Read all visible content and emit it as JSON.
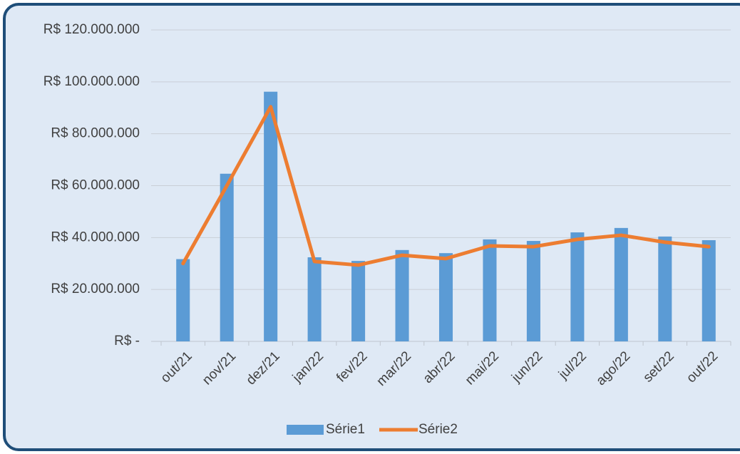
{
  "chart_data": {
    "type": "bar_line",
    "categories": [
      "out/21",
      "nov/21",
      "dez/21",
      "jan/22",
      "fev/22",
      "mar/22",
      "abr/22",
      "mai/22",
      "jun/22",
      "jul/22",
      "ago/22",
      "set/22",
      "out/22"
    ],
    "series": [
      {
        "name": "Série1",
        "type": "bar",
        "color": "#5b9bd5",
        "values": [
          31700000,
          64600000,
          96200000,
          32400000,
          31000000,
          35200000,
          34000000,
          39300000,
          38700000,
          42000000,
          43700000,
          40400000,
          39000000
        ]
      },
      {
        "name": "Série2",
        "type": "line",
        "color": "#ed7d31",
        "values": [
          30000000,
          60000000,
          90400000,
          30800000,
          29400000,
          33200000,
          31900000,
          36800000,
          36500000,
          39300000,
          40900000,
          38200000,
          36500000
        ]
      }
    ],
    "ylim": [
      0,
      120000000
    ],
    "yticks": [
      {
        "value": 0,
        "label": "R$ -"
      },
      {
        "value": 20000000,
        "label": "R$ 20.000.000"
      },
      {
        "value": 40000000,
        "label": "R$ 40.000.000"
      },
      {
        "value": 60000000,
        "label": "R$ 60.000.000"
      },
      {
        "value": 80000000,
        "label": "R$ 80.000.000"
      },
      {
        "value": 100000000,
        "label": "R$ 100.000.000"
      },
      {
        "value": 120000000,
        "label": "R$ 120.000.000"
      }
    ],
    "grid": true,
    "legend": "bottom"
  }
}
